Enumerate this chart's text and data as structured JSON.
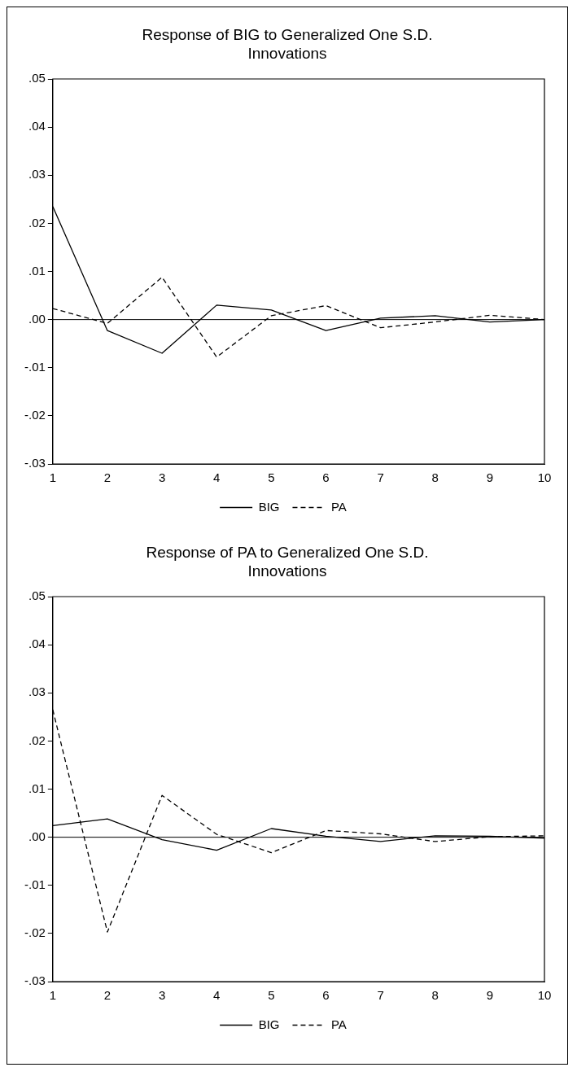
{
  "chart_data": [
    {
      "type": "line",
      "title": "Response of BIG to Generalized One S.D. Innovations",
      "categories": [
        "1",
        "2",
        "3",
        "4",
        "5",
        "6",
        "7",
        "8",
        "9",
        "10"
      ],
      "series": [
        {
          "name": "BIG",
          "color": "#000000",
          "line_style": "solid",
          "values": [
            0.0235,
            -0.0023,
            -0.007,
            0.003,
            0.002,
            -0.0023,
            0.0003,
            0.0008,
            -0.0005,
            0.0
          ]
        },
        {
          "name": "PA",
          "color": "#000000",
          "line_style": "dashed",
          "values": [
            0.0023,
            -0.0008,
            0.0088,
            -0.0078,
            0.0008,
            0.0029,
            -0.0017,
            -0.0005,
            0.0009,
            0.0
          ]
        }
      ],
      "ylim": [
        -0.03,
        0.05
      ],
      "yticks": [
        {
          "value": -0.03,
          "label": "-.03"
        },
        {
          "value": -0.02,
          "label": "-.02"
        },
        {
          "value": -0.01,
          "label": "-.01"
        },
        {
          "value": 0,
          "label": ".00"
        },
        {
          "value": 0.01,
          "label": ".01"
        },
        {
          "value": 0.02,
          "label": ".02"
        },
        {
          "value": 0.03,
          "label": ".03"
        },
        {
          "value": 0.04,
          "label": ".04"
        },
        {
          "value": 0.05,
          "label": ".05"
        }
      ],
      "ref_lines": [
        {
          "axis": "y",
          "value": 0,
          "color": "#000000"
        }
      ],
      "grid": false,
      "legend": "bottom",
      "marker": "none"
    },
    {
      "type": "line",
      "title": "Response of PA to Generalized One S.D. Innovations",
      "categories": [
        "1",
        "2",
        "3",
        "4",
        "5",
        "6",
        "7",
        "8",
        "9",
        "10"
      ],
      "series": [
        {
          "name": "BIG",
          "color": "#000000",
          "line_style": "solid",
          "values": [
            0.0024,
            0.0038,
            -0.0005,
            -0.0027,
            0.0018,
            0.0002,
            -0.0009,
            0.0003,
            0.0002,
            -0.0002
          ]
        },
        {
          "name": "PA",
          "color": "#000000",
          "line_style": "dashed",
          "values": [
            0.0265,
            -0.0197,
            0.0087,
            0.0006,
            -0.0032,
            0.0014,
            0.0007,
            -0.0009,
            0.0001,
            0.0003
          ]
        }
      ],
      "ylim": [
        -0.03,
        0.05
      ],
      "yticks": [
        {
          "value": -0.03,
          "label": "-.03"
        },
        {
          "value": -0.02,
          "label": "-.02"
        },
        {
          "value": -0.01,
          "label": "-.01"
        },
        {
          "value": 0,
          "label": ".00"
        },
        {
          "value": 0.01,
          "label": ".01"
        },
        {
          "value": 0.02,
          "label": ".02"
        },
        {
          "value": 0.03,
          "label": ".03"
        },
        {
          "value": 0.04,
          "label": ".04"
        },
        {
          "value": 0.05,
          "label": ".05"
        }
      ],
      "ref_lines": [
        {
          "axis": "y",
          "value": 0,
          "color": "#000000"
        }
      ],
      "grid": false,
      "legend": "bottom",
      "marker": "none"
    }
  ]
}
